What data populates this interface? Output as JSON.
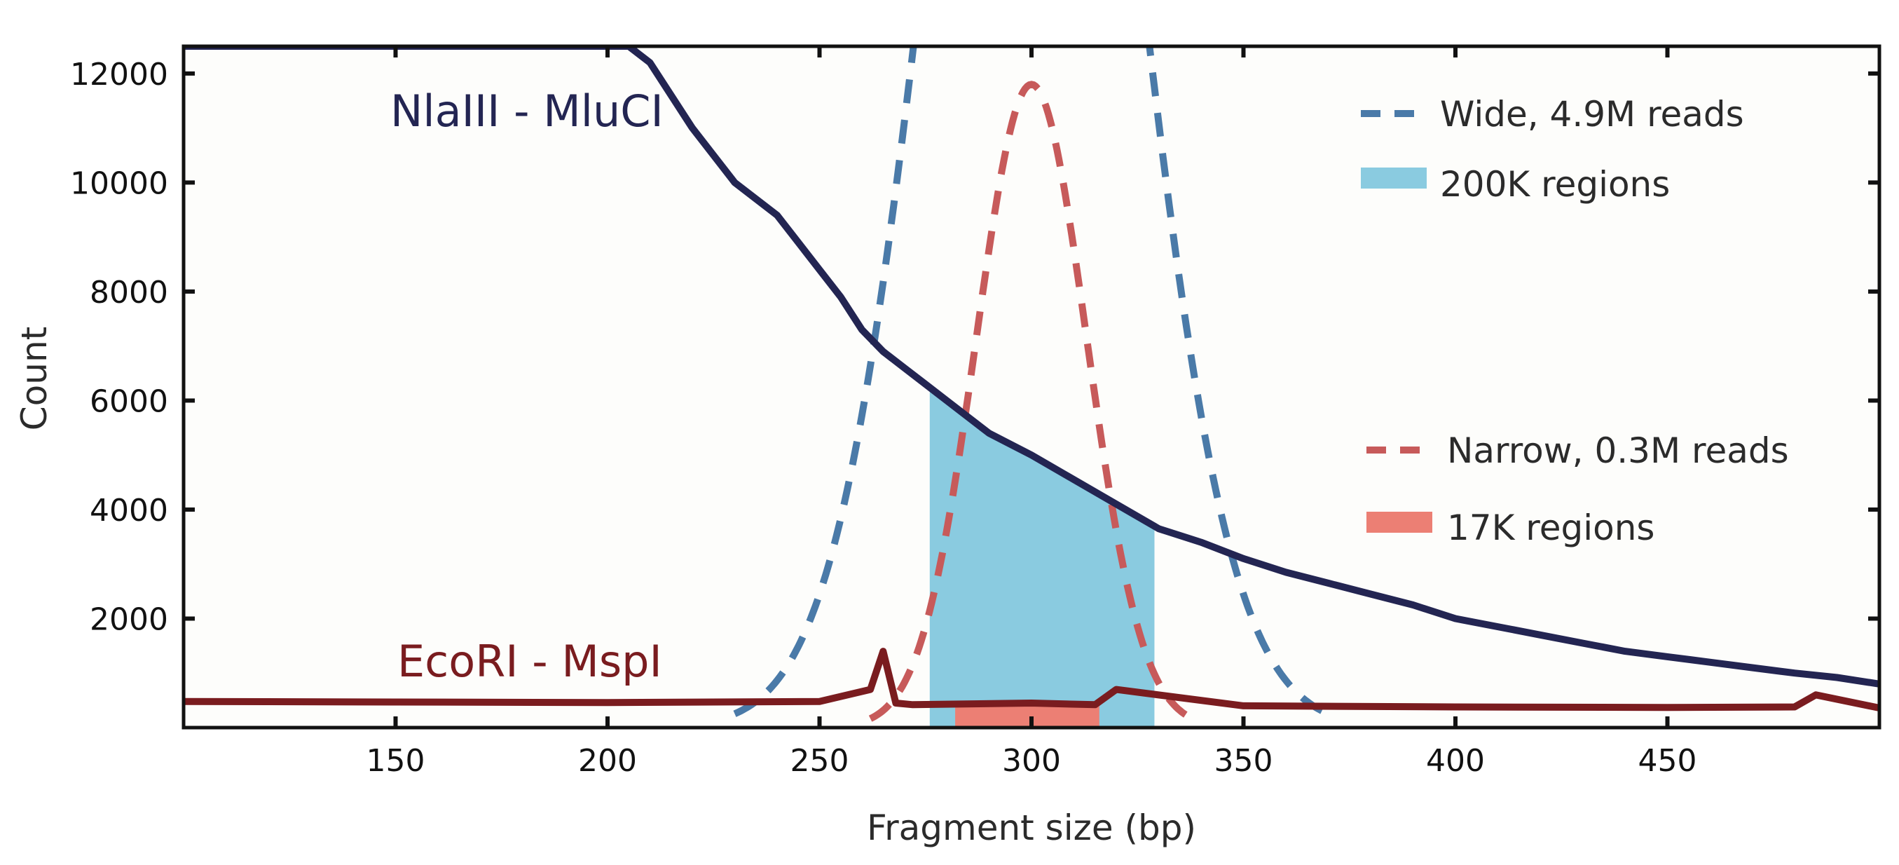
{
  "chart_data": {
    "type": "line",
    "xlabel": "Fragment size (bp)",
    "ylabel": "Count",
    "xlim": [
      100,
      500
    ],
    "ylim": [
      0,
      12500
    ],
    "xticks": [
      150,
      200,
      250,
      300,
      350,
      400,
      450
    ],
    "yticks": [
      2000,
      4000,
      6000,
      8000,
      10000,
      12000
    ],
    "grid": false,
    "series": [
      {
        "name": "NlaIII - MluCI",
        "color": "#232552",
        "x": [
          100,
          205,
          210,
          220,
          230,
          240,
          245,
          250,
          255,
          260,
          265,
          270,
          275,
          280,
          285,
          290,
          300,
          310,
          320,
          330,
          340,
          350,
          360,
          370,
          380,
          390,
          400,
          410,
          420,
          430,
          440,
          450,
          460,
          470,
          480,
          490,
          500
        ],
        "values": [
          12500,
          12500,
          12200,
          11000,
          10000,
          9400,
          8900,
          8400,
          7900,
          7300,
          6900,
          6600,
          6300,
          6000,
          5700,
          5400,
          5000,
          4550,
          4100,
          3650,
          3400,
          3100,
          2850,
          2650,
          2450,
          2250,
          2000,
          1850,
          1700,
          1550,
          1400,
          1300,
          1200,
          1100,
          1000,
          920,
          800
        ]
      },
      {
        "name": "EcoRI - MspI",
        "color": "#7a1c1f",
        "x": [
          100,
          150,
          200,
          250,
          262,
          265,
          268,
          272,
          300,
          315,
          320,
          350,
          400,
          450,
          480,
          485,
          500
        ],
        "values": [
          480,
          470,
          460,
          480,
          700,
          1400,
          450,
          420,
          450,
          420,
          700,
          400,
          380,
          370,
          380,
          600,
          360
        ]
      }
    ],
    "distributions": [
      {
        "name": "Wide",
        "legend": "Wide, 4.9M reads",
        "style": "dashed",
        "color": "#4a7aa8",
        "mean": 300,
        "sd": 23,
        "peak": 26000,
        "range": [
          230,
          370
        ]
      },
      {
        "name": "Narrow",
        "legend": "Narrow, 0.3M reads",
        "style": "dashed",
        "color": "#c75a5a",
        "mean": 300,
        "sd": 13,
        "peak": 11800,
        "range": [
          262,
          338
        ]
      }
    ],
    "regions": [
      {
        "name": "200K regions",
        "legend": "200K regions",
        "color": "#8acbe0",
        "x_range": [
          276,
          329
        ],
        "fill_under": "NlaIII - MluCI"
      },
      {
        "name": "17K regions",
        "legend": "17K regions",
        "color": "#ec7f74",
        "x_range": [
          282,
          316
        ],
        "top": 400
      }
    ],
    "legend_position": "top-right"
  }
}
